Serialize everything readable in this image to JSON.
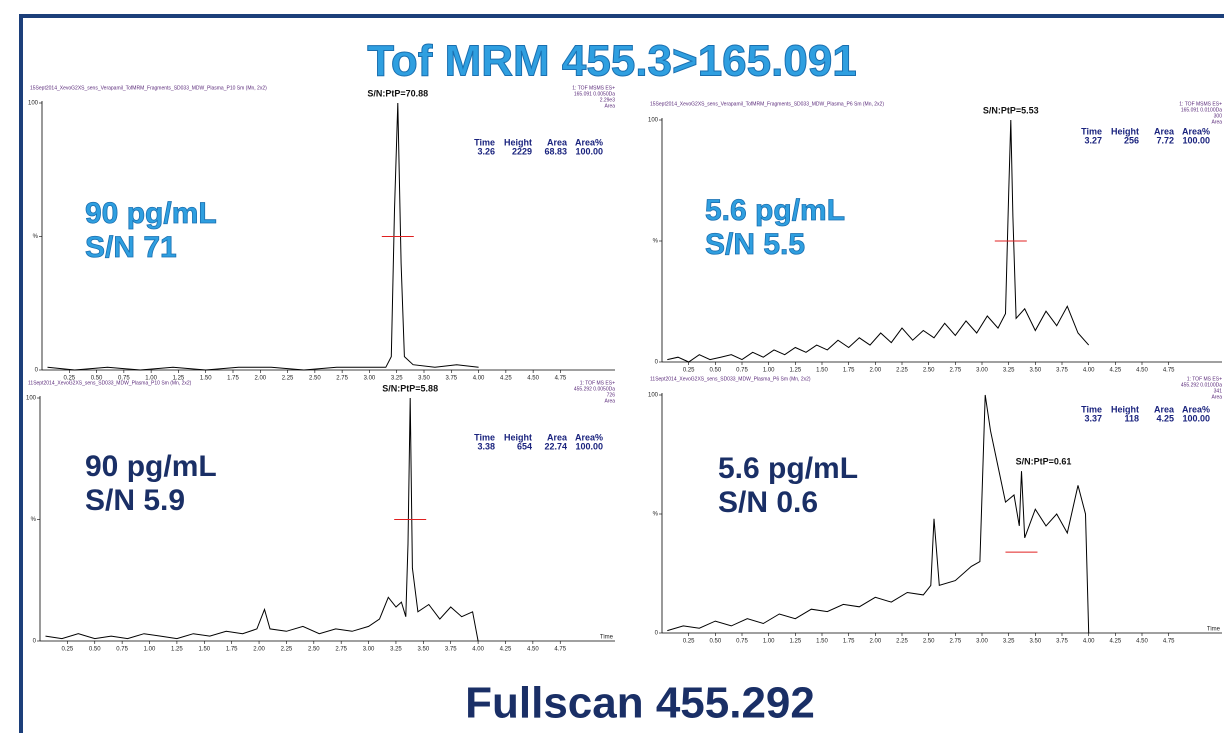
{
  "title": "Tof MRM 455.3>165.091",
  "footer_title": "Fullscan 455.292",
  "chart_data": [
    {
      "type": "line",
      "header": "15Sept2014_XevoG2XS_sens_Verapamil_TofMRM_Fragments_SD033_MDW_Plasma_P10 Sm (Mn, 2x2)",
      "info": [
        "1: TOF MSMS ES+",
        "165.091 0.0050Da",
        "2.29e3",
        "Area"
      ],
      "sn_label": "S/N:PtP=70.88",
      "peak_table": {
        "header": [
          "Time",
          "Height",
          "Area",
          "Area%"
        ],
        "row": [
          "3.26",
          "2229",
          "68.83",
          "100.00"
        ]
      },
      "labels": [
        "90 pg/mL",
        "S/N 71"
      ],
      "color": "#000000",
      "x": [
        0.05,
        0.3,
        0.6,
        0.9,
        1.2,
        1.5,
        1.8,
        2.1,
        2.4,
        2.7,
        3.0,
        3.15,
        3.2,
        3.23,
        3.26,
        3.29,
        3.32,
        3.4,
        3.6,
        3.8,
        4.0
      ],
      "values": [
        1,
        0,
        1,
        0,
        1,
        0,
        1,
        1,
        0,
        1,
        1,
        1,
        5,
        60,
        100,
        40,
        5,
        2,
        1,
        2,
        1
      ],
      "xlim": [
        0,
        5.25
      ],
      "ylim": [
        0,
        100
      ],
      "xticks": [
        0.25,
        {
          "value": 0.5,
          "label": "0.50"
        },
        0.75,
        {
          "value": 1,
          "label": "1.00"
        },
        1.25,
        {
          "value": 1.5,
          "label": "1.50"
        },
        1.75,
        {
          "value": 2,
          "label": "2.00"
        },
        2.25,
        {
          "value": 2.5,
          "label": "2.50"
        },
        2.75,
        {
          "value": 3,
          "label": "3.00"
        },
        3.25,
        {
          "value": 3.5,
          "label": "3.50"
        },
        3.75,
        {
          "value": 4,
          "label": "4.00"
        },
        4.25,
        {
          "value": 4.5,
          "label": "4.50"
        },
        4.75
      ],
      "yticks": [
        0,
        {
          "value": 50,
          "label": "%"
        },
        100
      ]
    },
    {
      "type": "line",
      "header": "15Sept2014_XevoG2XS_sens_Verapamil_TofMRM_Fragments_SD033_MDW_Plasma_P6 Sm (Mn, 2x2)",
      "info": [
        "1: TOF MSMS ES+",
        "165.091 0.0100Da",
        "300",
        "Area"
      ],
      "sn_label": "S/N:PtP=5.53",
      "peak_table": {
        "header": [
          "Time",
          "Height",
          "Area",
          "Area%"
        ],
        "row": [
          "3.27",
          "256",
          "7.72",
          "100.00"
        ]
      },
      "labels": [
        "5.6 pg/mL",
        "S/N 5.5"
      ],
      "color": "#000000",
      "x": [
        0.05,
        0.15,
        0.25,
        0.35,
        0.45,
        0.55,
        0.65,
        0.75,
        0.85,
        0.95,
        1.05,
        1.15,
        1.25,
        1.35,
        1.45,
        1.55,
        1.65,
        1.75,
        1.85,
        1.95,
        2.05,
        2.15,
        2.25,
        2.35,
        2.45,
        2.55,
        2.65,
        2.75,
        2.85,
        2.95,
        3.05,
        3.15,
        3.22,
        3.25,
        3.27,
        3.29,
        3.32,
        3.4,
        3.5,
        3.6,
        3.7,
        3.8,
        3.9,
        4.0
      ],
      "values": [
        1,
        2,
        0,
        3,
        1,
        2,
        3,
        1,
        4,
        2,
        5,
        3,
        6,
        4,
        7,
        5,
        9,
        6,
        10,
        7,
        12,
        8,
        14,
        9,
        13,
        10,
        16,
        11,
        17,
        12,
        19,
        14,
        20,
        70,
        100,
        60,
        18,
        22,
        13,
        21,
        15,
        23,
        12,
        7
      ],
      "xlim": [
        0,
        5.25
      ],
      "ylim": [
        0,
        100
      ],
      "xticks": [
        0.25,
        {
          "value": 0.5,
          "label": "0.50"
        },
        0.75,
        {
          "value": 1,
          "label": "1.00"
        },
        1.25,
        {
          "value": 1.5,
          "label": "1.50"
        },
        1.75,
        {
          "value": 2,
          "label": "2.00"
        },
        2.25,
        {
          "value": 2.5,
          "label": "2.50"
        },
        2.75,
        {
          "value": 3,
          "label": "3.00"
        },
        3.25,
        {
          "value": 3.5,
          "label": "3.50"
        },
        3.75,
        {
          "value": 4,
          "label": "4.00"
        },
        4.25,
        {
          "value": 4.5,
          "label": "4.50"
        },
        4.75
      ],
      "yticks": [
        0,
        {
          "value": 50,
          "label": "%"
        },
        100
      ]
    },
    {
      "type": "line",
      "header": "11Sept2014_XevoG2XS_sens_SD033_MDW_Plasma_P10 Sm (Mn, 2x2)",
      "info": [
        "1: TOF MS ES+",
        "455.292 0.0050Da",
        "726",
        "Area"
      ],
      "sn_label": "S/N:PtP=5.88",
      "peak_table": {
        "header": [
          "Time",
          "Height",
          "Area",
          "Area%"
        ],
        "row": [
          "3.38",
          "654",
          "22.74",
          "100.00"
        ]
      },
      "labels": [
        "90 pg/mL",
        "S/N 5.9"
      ],
      "color": "#000000",
      "xlabel": "Time",
      "x": [
        0.05,
        0.2,
        0.35,
        0.5,
        0.65,
        0.8,
        0.95,
        1.1,
        1.25,
        1.4,
        1.55,
        1.7,
        1.85,
        1.98,
        2.05,
        2.1,
        2.25,
        2.4,
        2.55,
        2.7,
        2.85,
        3.0,
        3.1,
        3.18,
        3.25,
        3.3,
        3.34,
        3.36,
        3.38,
        3.4,
        3.45,
        3.55,
        3.65,
        3.75,
        3.85,
        3.95,
        4.0
      ],
      "values": [
        2,
        1,
        3,
        1,
        2,
        1,
        3,
        2,
        1,
        3,
        2,
        4,
        3,
        5,
        13,
        5,
        4,
        6,
        3,
        5,
        4,
        6,
        9,
        18,
        14,
        16,
        10,
        40,
        100,
        30,
        12,
        15,
        9,
        14,
        10,
        12,
        0
      ],
      "xlim": [
        0,
        5.25
      ],
      "ylim": [
        0,
        100
      ],
      "xticks": [
        0.25,
        {
          "value": 0.5,
          "label": "0.50"
        },
        0.75,
        {
          "value": 1,
          "label": "1.00"
        },
        1.25,
        {
          "value": 1.5,
          "label": "1.50"
        },
        1.75,
        {
          "value": 2,
          "label": "2.00"
        },
        2.25,
        {
          "value": 2.5,
          "label": "2.50"
        },
        2.75,
        {
          "value": 3,
          "label": "3.00"
        },
        3.25,
        {
          "value": 3.5,
          "label": "3.50"
        },
        3.75,
        {
          "value": 4,
          "label": "4.00"
        },
        4.25,
        {
          "value": 4.5,
          "label": "4.50"
        },
        4.75
      ],
      "yticks": [
        0,
        {
          "value": 50,
          "label": "%"
        },
        100
      ]
    },
    {
      "type": "line",
      "header": "11Sept2014_XevoG2XS_sens_SD033_MDW_Plasma_P6 Sm (Mn, 2x2)",
      "info": [
        "1: TOF MS ES+",
        "455.292 0.0100Da",
        "341",
        "Area"
      ],
      "sn_label": "S/N:PtP=0.61",
      "peak_table": {
        "header": [
          "Time",
          "Height",
          "Area",
          "Area%"
        ],
        "row": [
          "3.37",
          "118",
          "4.25",
          "100.00"
        ]
      },
      "labels": [
        "5.6 pg/mL",
        "S/N 0.6"
      ],
      "color": "#000000",
      "xlabel": "Time",
      "x": [
        0.05,
        0.2,
        0.35,
        0.5,
        0.65,
        0.8,
        0.95,
        1.1,
        1.25,
        1.4,
        1.55,
        1.7,
        1.85,
        2.0,
        2.15,
        2.3,
        2.45,
        2.52,
        2.55,
        2.6,
        2.75,
        2.9,
        2.98,
        3.03,
        3.08,
        3.15,
        3.22,
        3.3,
        3.35,
        3.37,
        3.4,
        3.5,
        3.6,
        3.7,
        3.8,
        3.9,
        3.97,
        4.0
      ],
      "values": [
        1,
        3,
        2,
        5,
        3,
        6,
        4,
        8,
        6,
        10,
        9,
        12,
        11,
        15,
        13,
        17,
        16,
        20,
        48,
        20,
        22,
        28,
        30,
        100,
        85,
        70,
        55,
        58,
        45,
        68,
        40,
        52,
        45,
        50,
        42,
        62,
        50,
        0
      ],
      "xlim": [
        0,
        5.25
      ],
      "ylim": [
        0,
        100
      ],
      "xticks": [
        0.25,
        {
          "value": 0.5,
          "label": "0.50"
        },
        0.75,
        {
          "value": 1,
          "label": "1.00"
        },
        1.25,
        {
          "value": 1.5,
          "label": "1.50"
        },
        1.75,
        {
          "value": 2,
          "label": "2.00"
        },
        2.25,
        {
          "value": 2.5,
          "label": "2.50"
        },
        2.75,
        {
          "value": 3,
          "label": "3.00"
        },
        3.25,
        {
          "value": 3.5,
          "label": "3.50"
        },
        3.75,
        {
          "value": 4,
          "label": "4.00"
        },
        4.25,
        {
          "value": 4.5,
          "label": "4.50"
        },
        4.75
      ],
      "yticks": [
        0,
        {
          "value": 50,
          "label": "%"
        },
        100
      ]
    }
  ]
}
